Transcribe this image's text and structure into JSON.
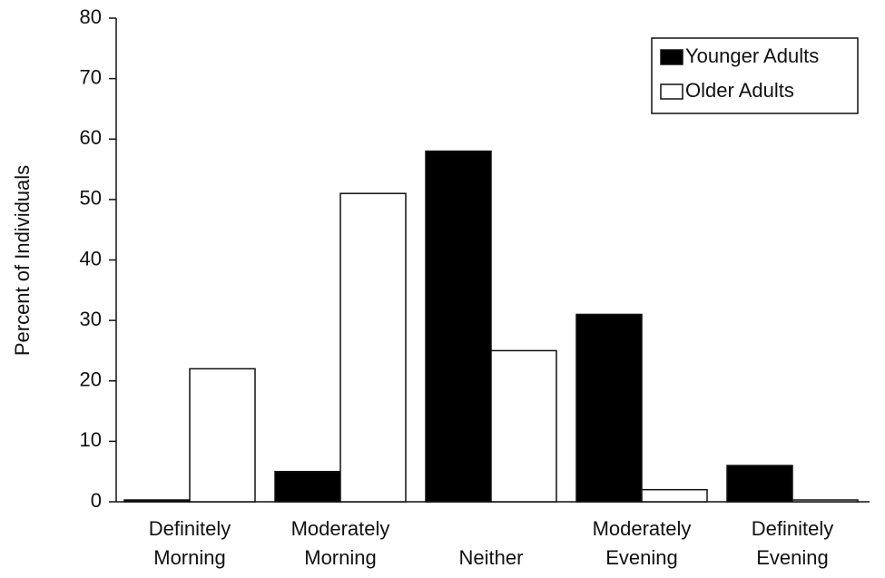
{
  "chart_data": {
    "type": "bar",
    "y_label": "Percent of Individuals",
    "categories": [
      [
        "Definitely",
        "Morning"
      ],
      [
        "Moderately",
        "Morning"
      ],
      [
        "Neither"
      ],
      [
        "Moderately",
        "Evening"
      ],
      [
        "Definitely",
        "Evening"
      ]
    ],
    "series": [
      {
        "name": "Younger Adults",
        "color": "#000000",
        "values": [
          0.3,
          5,
          58,
          31,
          6
        ]
      },
      {
        "name": "Older Adults",
        "color": "#ffffff",
        "values": [
          22,
          51,
          25,
          2,
          0.3
        ]
      }
    ],
    "ylim": [
      0,
      80
    ],
    "yticks": [
      0,
      10,
      20,
      30,
      40,
      50,
      60,
      70,
      80
    ],
    "legend": "upper right",
    "grid": false
  }
}
